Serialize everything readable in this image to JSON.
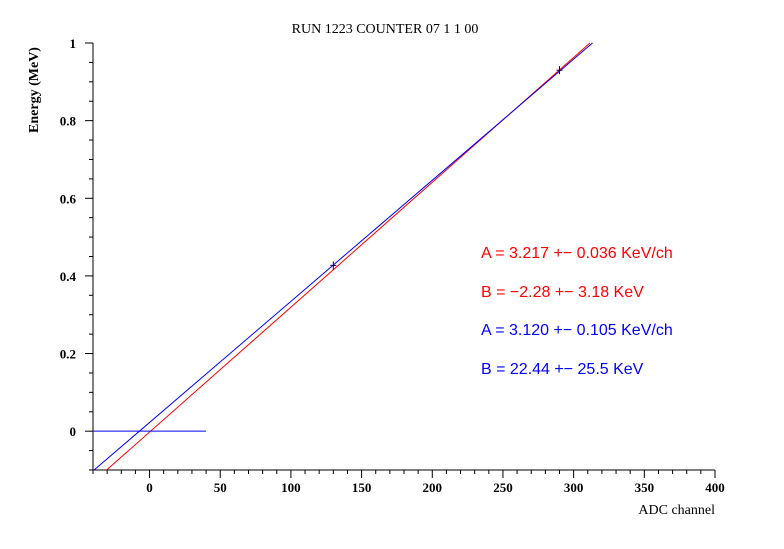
{
  "chart_data": {
    "type": "line",
    "title": "RUN 1223  COUNTER  07   1   1  00",
    "xlabel": "ADC channel",
    "ylabel": "Energy (MeV)",
    "xlim": [
      -40,
      400
    ],
    "ylim": [
      -0.1,
      1.0
    ],
    "x_ticks": [
      0,
      50,
      100,
      150,
      200,
      250,
      300,
      350,
      400
    ],
    "x_tick_labels": [
      "0",
      "50",
      "100",
      "150",
      "200",
      "250",
      "300",
      "350",
      "400"
    ],
    "y_ticks": [
      0,
      0.2,
      0.4,
      0.6,
      0.8,
      1.0
    ],
    "y_tick_labels": [
      "0",
      "0.2",
      "0.4",
      "0.6",
      "0.8",
      "1"
    ],
    "grid": false,
    "points": [
      {
        "x": 130,
        "y": 0.427
      },
      {
        "x": 290,
        "y": 0.93
      }
    ],
    "series": [
      {
        "color": "#ff0000",
        "slope_kev_per_ch": 3.217,
        "intercept_kev": -2.28
      },
      {
        "color": "#0000ff",
        "slope_kev_per_ch": 3.12,
        "intercept_kev": 22.44
      }
    ],
    "baseline": {
      "color": "#0000ff",
      "y": 0,
      "x_end": 40
    },
    "annotations": [
      {
        "text": "A = 3.217 +− 0.036 KeV/ch",
        "color": "#ff0000"
      },
      {
        "text": "B = −2.28 +− 3.18 KeV",
        "color": "#ff0000"
      },
      {
        "text": "A = 3.120 +− 0.105 KeV/ch",
        "color": "#0000ff"
      },
      {
        "text": "B = 22.44 +− 25.5 KeV",
        "color": "#0000ff"
      }
    ]
  }
}
